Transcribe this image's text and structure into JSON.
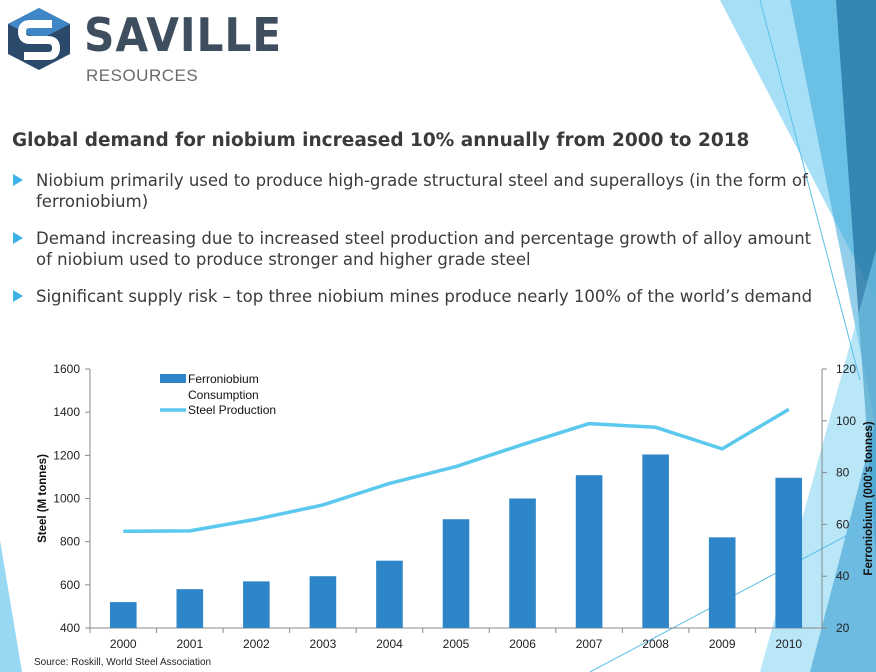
{
  "brand": {
    "name": "SAVILLE",
    "subtitle": "RESOURCES",
    "logo_icon": "saville-s-cube-logo",
    "colors": {
      "logo_dark": "#2b4a6b",
      "logo_light": "#3e86c6",
      "text": "#3e4e5e"
    }
  },
  "slide": {
    "headline": "Global demand for niobium increased 10% annually from 2000 to 2018",
    "bullets": [
      {
        "text": "Niobium primarily used to produce high-grade structural steel and superalloys (in the form of ferroniobium)"
      },
      {
        "text": "Demand increasing due to increased steel production and percentage growth of alloy amount of niobium used to produce stronger and higher grade steel"
      },
      {
        "text": "Significant supply risk – top three niobium mines produce nearly 100% of the world’s demand"
      }
    ],
    "bullet_icon": "triangle-bullet-icon",
    "accent_color": "#3bb3e6",
    "source": "Source: Roskill, World Steel Association"
  },
  "chart_data": {
    "type": "bar",
    "categories": [
      "2000",
      "2001",
      "2002",
      "2003",
      "2004",
      "2005",
      "2006",
      "2007",
      "2008",
      "2009",
      "2010"
    ],
    "series": [
      {
        "name": "Ferroniobium Consumption",
        "type": "bar",
        "axis": "right",
        "values": [
          30,
          35,
          38,
          40,
          46,
          62,
          70,
          79,
          87,
          55,
          78
        ],
        "color": "#2e86c8"
      },
      {
        "name": "Steel Production",
        "type": "line",
        "axis": "left",
        "values": [
          848,
          850,
          904,
          970,
          1070,
          1148,
          1250,
          1347,
          1330,
          1230,
          1413
        ],
        "color": "#5bc8ee"
      }
    ],
    "ylabel": "Steel (M tonnes)",
    "ylabel_right": "Ferroniobium (000's tonnes)",
    "ylim": [
      400,
      1600
    ],
    "ylim_right": [
      20,
      120
    ],
    "yticks": [
      400,
      600,
      800,
      1000,
      1200,
      1400,
      1600
    ],
    "yticks_right": [
      20,
      40,
      60,
      80,
      100,
      120
    ],
    "legend": [
      {
        "label_line1": "Ferroniobium",
        "label_line2": "Consumption"
      },
      {
        "label_line1": "Steel Production",
        "label_line2": ""
      }
    ],
    "legend_position": "top-left",
    "grid": false
  }
}
